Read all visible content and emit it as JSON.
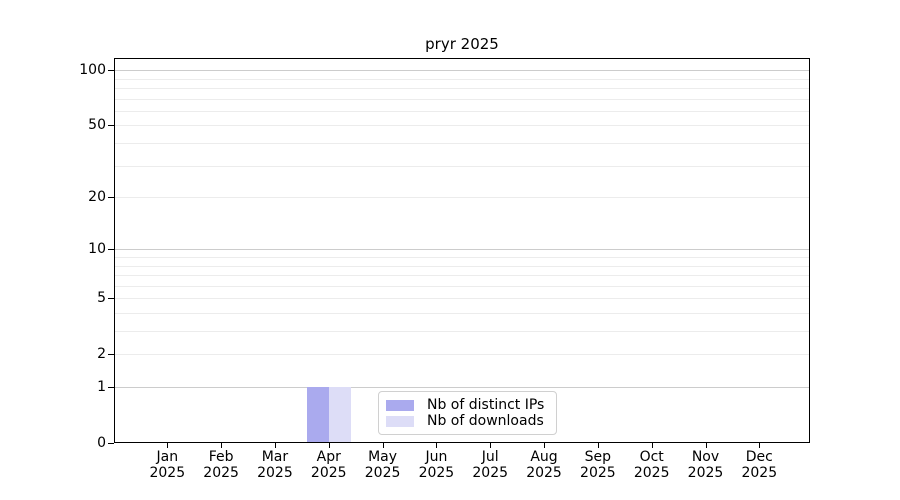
{
  "title": "pryr 2025",
  "chart_data": {
    "type": "bar",
    "title": "pryr 2025",
    "x_categories": [
      {
        "month": "Jan",
        "year": "2025"
      },
      {
        "month": "Feb",
        "year": "2025"
      },
      {
        "month": "Mar",
        "year": "2025"
      },
      {
        "month": "Apr",
        "year": "2025"
      },
      {
        "month": "May",
        "year": "2025"
      },
      {
        "month": "Jun",
        "year": "2025"
      },
      {
        "month": "Jul",
        "year": "2025"
      },
      {
        "month": "Aug",
        "year": "2025"
      },
      {
        "month": "Sep",
        "year": "2025"
      },
      {
        "month": "Oct",
        "year": "2025"
      },
      {
        "month": "Nov",
        "year": "2025"
      },
      {
        "month": "Dec",
        "year": "2025"
      }
    ],
    "series": [
      {
        "name": "Nb of distinct IPs",
        "color": "#aaaaee",
        "values": [
          0,
          0,
          0,
          1,
          0,
          0,
          0,
          0,
          0,
          0,
          0,
          0
        ]
      },
      {
        "name": "Nb of downloads",
        "color": "#ddddf7",
        "values": [
          0,
          0,
          0,
          1,
          0,
          0,
          0,
          0,
          0,
          0,
          0,
          0
        ]
      }
    ],
    "y_axis": {
      "scale": "log1p",
      "ylim": [
        0,
        116.5
      ],
      "ticks": [
        {
          "value": 0,
          "label": "0"
        },
        {
          "value": 1,
          "label": "1"
        },
        {
          "value": 2,
          "label": "2"
        },
        {
          "value": 5,
          "label": "5"
        },
        {
          "value": 10,
          "label": "10"
        },
        {
          "value": 20,
          "label": "20"
        },
        {
          "value": 50,
          "label": "50"
        },
        {
          "value": 100,
          "label": "100"
        }
      ],
      "major_grid_values": [
        1,
        10,
        100
      ],
      "minor_grid_values": [
        2,
        3,
        4,
        5,
        6,
        7,
        8,
        9,
        20,
        30,
        40,
        50,
        60,
        70,
        80,
        90
      ]
    },
    "grid": true,
    "legend": {
      "position": "inside lower center",
      "items": [
        "Nb of distinct IPs",
        "Nb of downloads"
      ]
    }
  },
  "colors": {
    "spine": "#000000",
    "grid_major": "#cccccc",
    "grid_minor": "#ececec",
    "bar_distinct_ips": "#aaaaee",
    "bar_downloads": "#ddddf7",
    "legend_border": "#d0d0d0",
    "background": "#ffffff",
    "text": "#000000"
  }
}
